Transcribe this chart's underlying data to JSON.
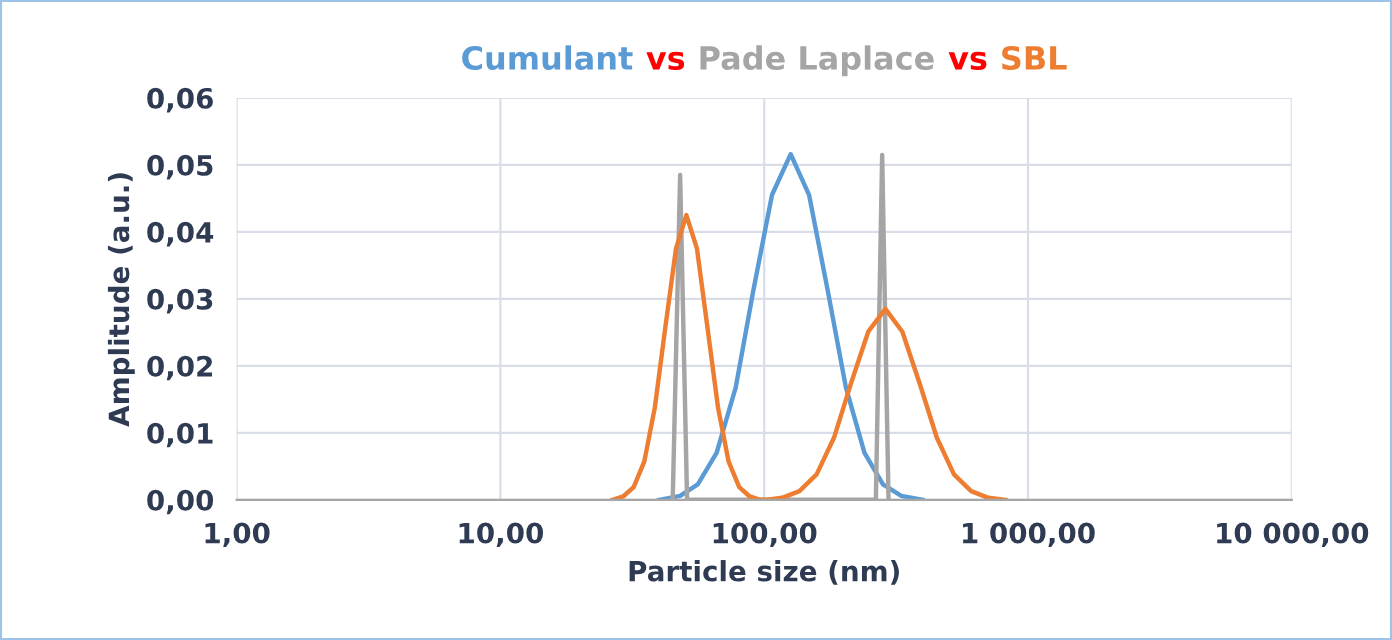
{
  "chart_data": {
    "type": "line",
    "xlabel": "Particle size (nm)",
    "ylabel": "Amplitude (a.u.)",
    "annotations": [
      "vs",
      "vs"
    ],
    "log": "x",
    "grid": true,
    "legend": false,
    "marker": "none",
    "line_style": "solid",
    "xlim": [
      1,
      10000
    ],
    "xticks": [
      {
        "value": 1,
        "label": "1,00"
      },
      {
        "value": 10,
        "label": "10,00"
      },
      {
        "value": 100,
        "label": "100,00"
      },
      {
        "value": 1000,
        "label": "1 000,00"
      },
      {
        "value": 10000,
        "label": "10 000,00"
      }
    ],
    "ylim": [
      0,
      0.06
    ],
    "yticks": [
      {
        "value": 0,
        "label": "0,00"
      },
      {
        "value": 0.01,
        "label": "0,01"
      },
      {
        "value": 0.02,
        "label": "0,02"
      },
      {
        "value": 0.03,
        "label": "0,03"
      },
      {
        "value": 0.04,
        "label": "0,04"
      },
      {
        "value": 0.05,
        "label": "0,05"
      },
      {
        "value": 0.06,
        "label": "0,06"
      }
    ],
    "series": [
      {
        "name": "Cumulant",
        "color": "#5b9bd5",
        "x": [
          40,
          48,
          56,
          66,
          78,
          91,
          107,
          126,
          148,
          174,
          204,
          240,
          282,
          331,
          398
        ],
        "values": [
          0,
          0.0006,
          0.0023,
          0.007,
          0.0168,
          0.0313,
          0.0455,
          0.0516,
          0.0455,
          0.0313,
          0.0168,
          0.007,
          0.0023,
          0.0006,
          0
        ]
      },
      {
        "name": "Pade Laplace",
        "color": "#a5a5a5",
        "x": [
          45,
          48,
          51,
          265,
          280,
          296
        ],
        "values": [
          0,
          0.0485,
          0,
          0,
          0.0515,
          0
        ]
      },
      {
        "name": "SBL",
        "color": "#ed7d31",
        "x": [
          26.6,
          29.2,
          32.0,
          35.1,
          38.5,
          42.2,
          46.3,
          50.7,
          55.6,
          60.9,
          66.8,
          73.3,
          80.4,
          88.1,
          96.6,
          101,
          117,
          136,
          158,
          184,
          213,
          248,
          288,
          334,
          389,
          451,
          524,
          609,
          707,
          821
        ],
        "values": [
          0,
          0.0005,
          0.0019,
          0.0057,
          0.0138,
          0.0258,
          0.0375,
          0.0425,
          0.0375,
          0.0258,
          0.0138,
          0.0057,
          0.0019,
          0.0005,
          0,
          0,
          0.0003,
          0.0013,
          0.0038,
          0.0093,
          0.0173,
          0.0251,
          0.0285,
          0.0251,
          0.0173,
          0.0093,
          0.0038,
          0.0013,
          0.0003,
          0
        ]
      }
    ]
  }
}
